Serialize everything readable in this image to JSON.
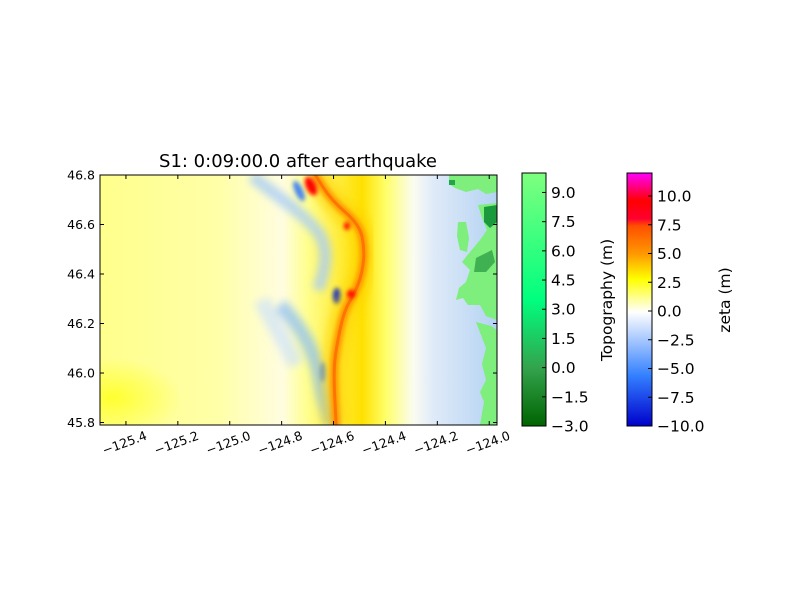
{
  "chart_data": {
    "type": "heatmap",
    "title": "S1: 0:09:00.0 after earthquake",
    "xlabel": "",
    "ylabel": "",
    "xlim": [
      -125.5,
      -123.97
    ],
    "ylim": [
      45.79,
      46.8
    ],
    "x_ticks": [
      -125.4,
      -125.2,
      -125.0,
      -124.8,
      -124.6,
      -124.4,
      -124.2,
      -124.0
    ],
    "x_tick_labels": [
      "−125.4",
      "−125.2",
      "−125.0",
      "−124.8",
      "−124.6",
      "−124.4",
      "−124.2",
      "−124.0"
    ],
    "y_ticks": [
      45.8,
      46.0,
      46.2,
      46.4,
      46.6,
      46.8
    ],
    "y_tick_labels": [
      "45.8",
      "46.0",
      "46.2",
      "46.4",
      "46.6",
      "46.8"
    ],
    "grid": false,
    "field": "sea surface elevation",
    "wave_front": [
      {
        "lat": 46.8,
        "lon": -124.67
      },
      {
        "lat": 46.7,
        "lon": -124.61
      },
      {
        "lat": 46.6,
        "lon": -124.5
      },
      {
        "lat": 46.5,
        "lon": -124.48
      },
      {
        "lat": 46.4,
        "lon": -124.49
      },
      {
        "lat": 46.32,
        "lon": -124.52
      },
      {
        "lat": 46.25,
        "lon": -124.56
      },
      {
        "lat": 46.1,
        "lon": -124.59
      },
      {
        "lat": 46.0,
        "lon": -124.6
      },
      {
        "lat": 45.79,
        "lon": -124.59
      }
    ],
    "colorbars": [
      {
        "label": "Topography (m)",
        "range": [
          -3.0,
          10.0
        ],
        "ticks": [
          -3.0,
          -1.5,
          0.0,
          1.5,
          3.0,
          4.5,
          6.0,
          7.5,
          9.0
        ],
        "tick_labels": [
          "−3.0",
          "−1.5",
          "0.0",
          "1.5",
          "3.0",
          "4.5",
          "6.0",
          "7.5",
          "9.0"
        ],
        "colors": [
          "#006400",
          "#33a34d",
          "#00ff7f",
          "#7fff7f"
        ]
      },
      {
        "label": "zeta (m)",
        "range": [
          -10.0,
          12.0
        ],
        "ticks": [
          -10.0,
          -7.5,
          -5.0,
          -2.5,
          0.0,
          2.5,
          5.0,
          7.5,
          10.0
        ],
        "tick_labels": [
          "−10.0",
          "−7.5",
          "−5.0",
          "−2.5",
          "0.0",
          "2.5",
          "5.0",
          "7.5",
          "10.0"
        ],
        "colors": [
          "#0000cc",
          "#3380ff",
          "#ffffff",
          "#ffff00",
          "#ff8000",
          "#ff0000",
          "#ff00ff"
        ]
      }
    ]
  }
}
